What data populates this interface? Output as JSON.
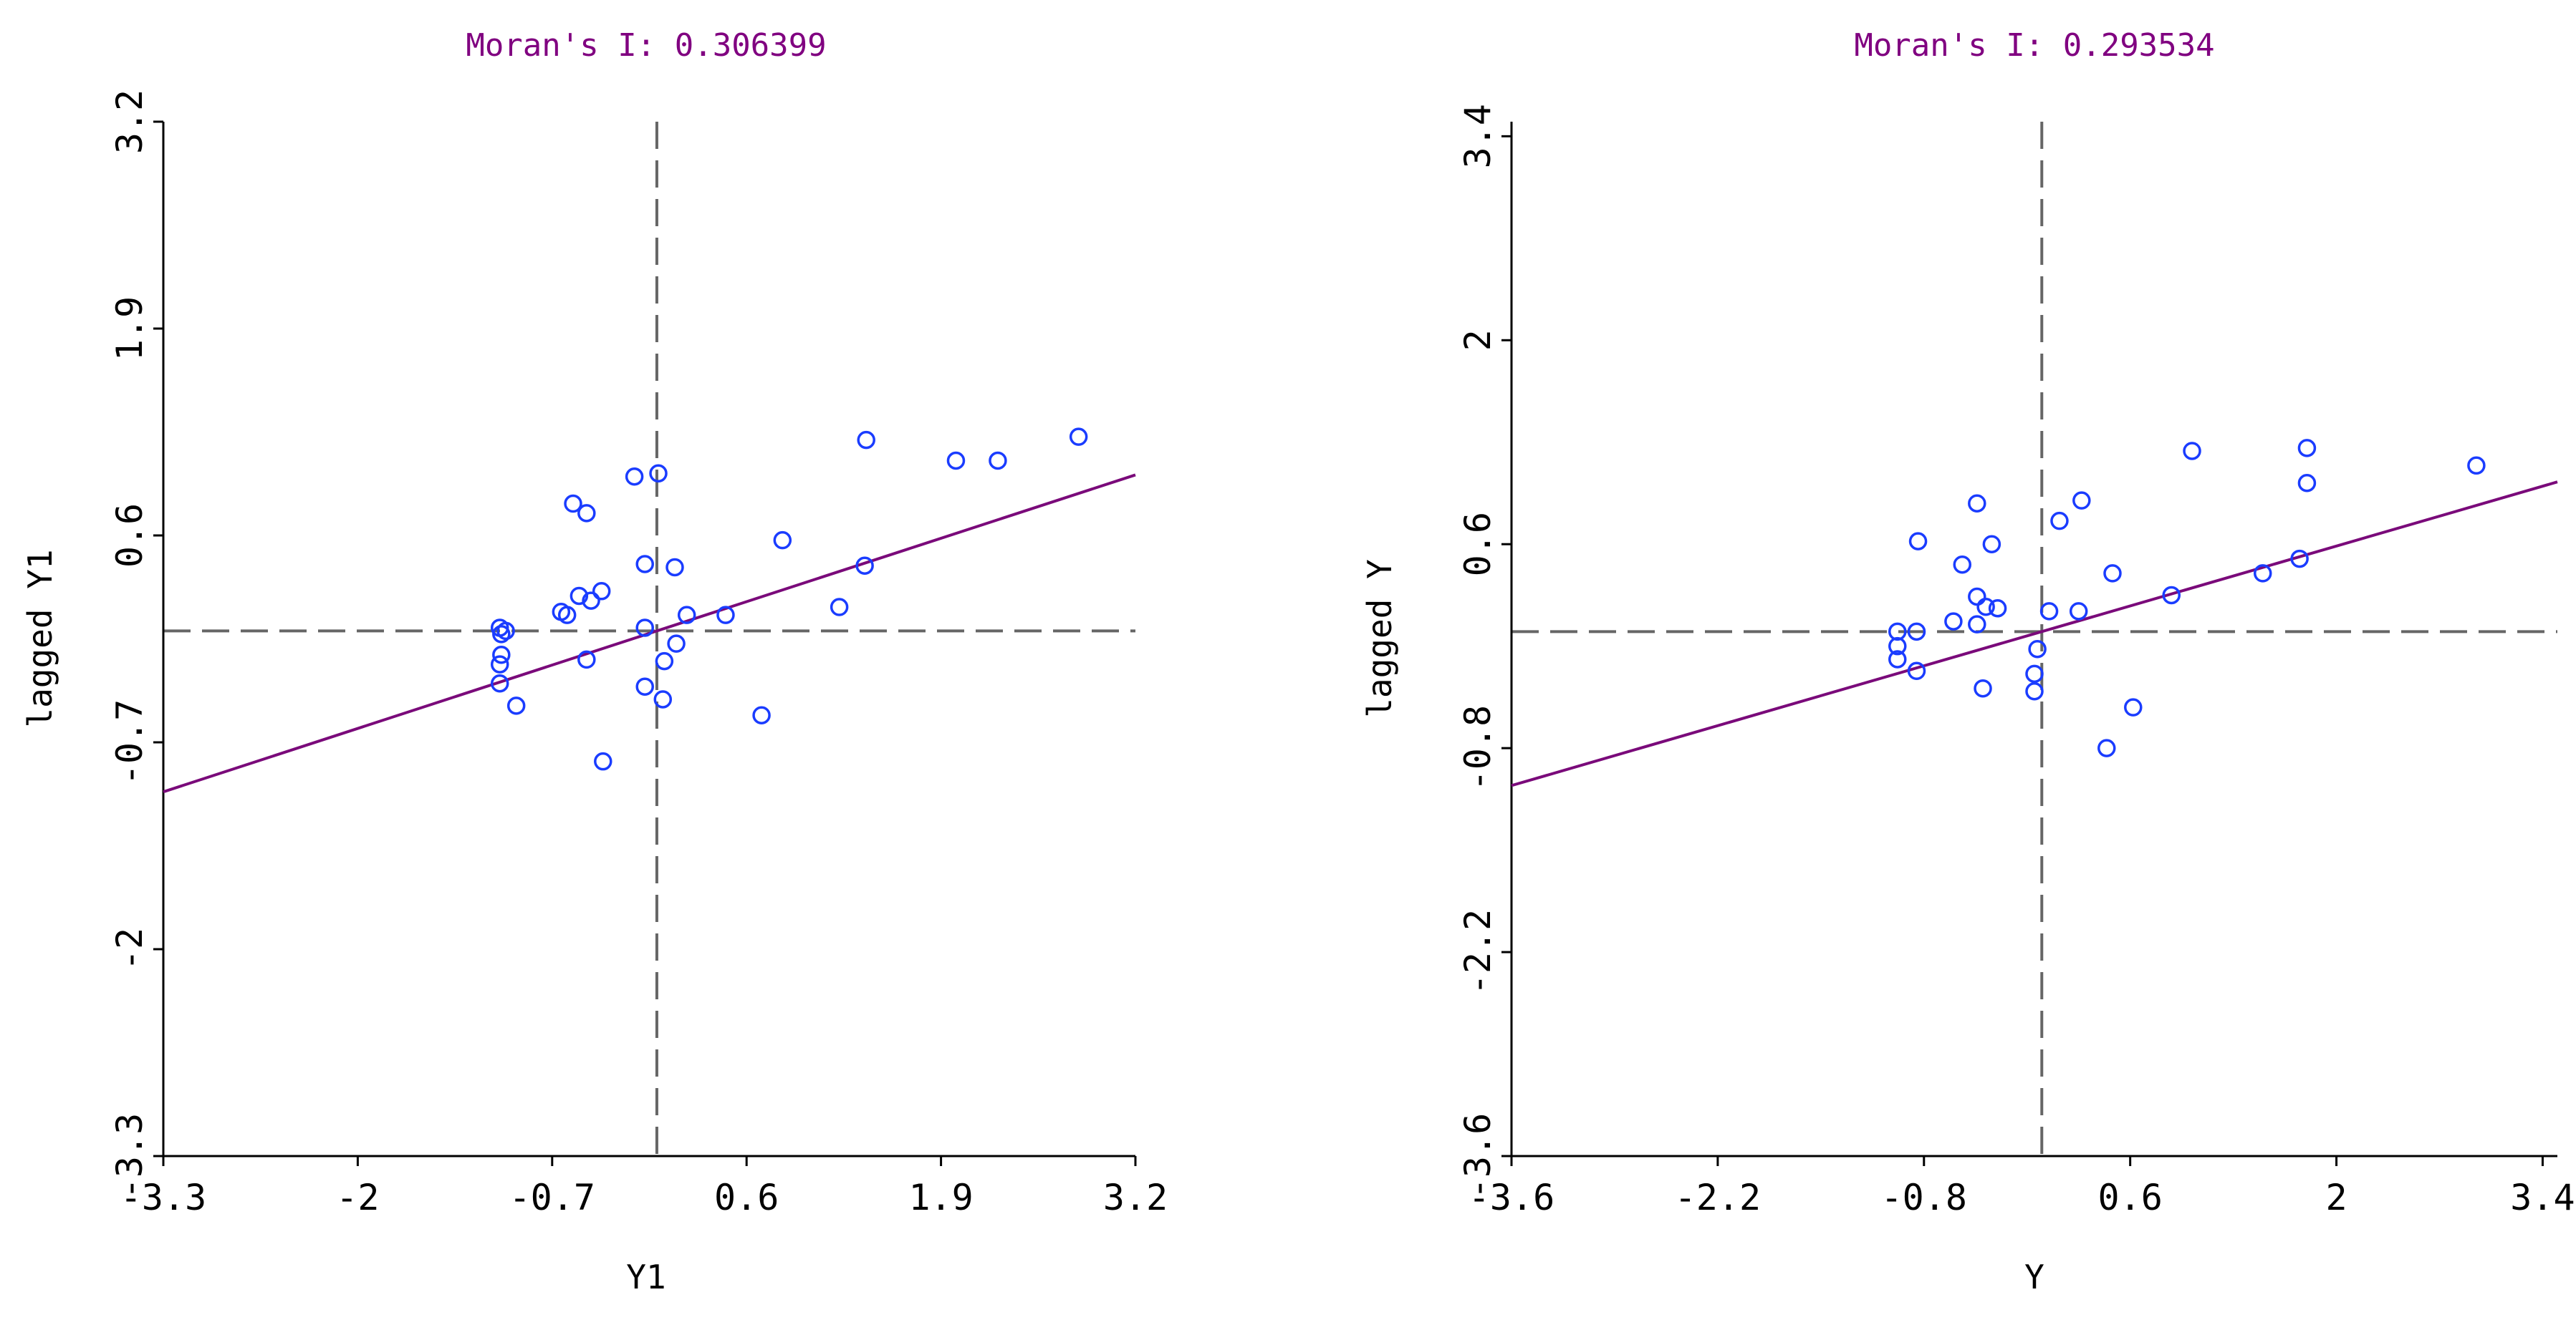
{
  "colors": {
    "title": "#800080",
    "fit_line": "#7a0a7a",
    "points": "#1a3cff",
    "axes": "#000000",
    "reference": "#666666"
  },
  "chart_data": [
    {
      "type": "scatter",
      "title": "Moran's I: 0.306399",
      "xlabel": "Y1",
      "ylabel": "lagged Y1",
      "xlim": [
        -3.3,
        3.2
      ],
      "ylim": [
        -3.3,
        3.2
      ],
      "xticks": [
        "-3.3",
        "-2",
        "-0.7",
        "0.6",
        "1.9",
        "3.2"
      ],
      "yticks": [
        "-3.3",
        "-2",
        "-0.7",
        "0.6",
        "1.9",
        "3.2"
      ],
      "slope": 0.306399,
      "reference_x": 0,
      "reference_y": 0,
      "points": [
        [
          1.4,
          1.2
        ],
        [
          2.82,
          1.22
        ],
        [
          2.0,
          1.07
        ],
        [
          2.28,
          1.07
        ],
        [
          -0.15,
          0.97
        ],
        [
          0.01,
          0.99
        ],
        [
          -0.56,
          0.8
        ],
        [
          -0.47,
          0.74
        ],
        [
          0.84,
          0.57
        ],
        [
          -0.08,
          0.42
        ],
        [
          0.12,
          0.4
        ],
        [
          -0.52,
          0.22
        ],
        [
          -0.44,
          0.19
        ],
        [
          -0.37,
          0.25
        ],
        [
          -0.64,
          0.12
        ],
        [
          -0.6,
          0.1
        ],
        [
          0.2,
          0.1
        ],
        [
          0.46,
          0.1
        ],
        [
          1.22,
          0.15
        ],
        [
          1.39,
          0.41
        ],
        [
          -1.05,
          0.02
        ],
        [
          -1.04,
          -0.02
        ],
        [
          -1.01,
          0.0
        ],
        [
          -1.04,
          -0.15
        ],
        [
          -1.05,
          -0.21
        ],
        [
          -1.05,
          -0.33
        ],
        [
          -0.94,
          -0.47
        ],
        [
          -0.47,
          -0.18
        ],
        [
          -0.08,
          0.02
        ],
        [
          0.05,
          -0.19
        ],
        [
          0.13,
          -0.08
        ],
        [
          -0.08,
          -0.35
        ],
        [
          0.04,
          -0.43
        ],
        [
          -0.36,
          -0.82
        ],
        [
          0.7,
          -0.53
        ]
      ]
    },
    {
      "type": "scatter",
      "title": "Moran's I: 0.293534",
      "xlabel": "Y",
      "ylabel": "lagged Y",
      "xlim": [
        -3.6,
        3.5
      ],
      "ylim": [
        -3.6,
        3.5
      ],
      "xticks": [
        "-3.6",
        "-2.2",
        "-0.8",
        "0.6",
        "2",
        "3.4"
      ],
      "yticks": [
        "-3.6",
        "-2.2",
        "-0.8",
        "0.6",
        "2",
        "3.4"
      ],
      "slope": 0.293534,
      "reference_x": 0,
      "reference_y": 0,
      "points": [
        [
          1.8,
          1.26
        ],
        [
          2.95,
          1.14
        ],
        [
          1.02,
          1.24
        ],
        [
          1.8,
          1.02
        ],
        [
          -0.44,
          0.88
        ],
        [
          0.27,
          0.9
        ],
        [
          0.12,
          0.76
        ],
        [
          -0.84,
          0.62
        ],
        [
          -0.34,
          0.6
        ],
        [
          -0.54,
          0.46
        ],
        [
          1.5,
          0.4
        ],
        [
          1.75,
          0.5
        ],
        [
          0.48,
          0.4
        ],
        [
          -0.44,
          0.24
        ],
        [
          -0.38,
          0.17
        ],
        [
          -0.3,
          0.16
        ],
        [
          0.88,
          0.25
        ],
        [
          -0.6,
          0.07
        ],
        [
          -0.44,
          0.05
        ],
        [
          0.05,
          0.14
        ],
        [
          0.25,
          0.14
        ],
        [
          -0.98,
          0.0
        ],
        [
          -0.85,
          0.0
        ],
        [
          -0.98,
          -0.1
        ],
        [
          -0.98,
          -0.19
        ],
        [
          -0.85,
          -0.27
        ],
        [
          -0.03,
          -0.12
        ],
        [
          -0.05,
          -0.29
        ],
        [
          -0.05,
          -0.41
        ],
        [
          -0.4,
          -0.39
        ],
        [
          0.62,
          -0.52
        ],
        [
          0.44,
          -0.8
        ]
      ]
    }
  ]
}
